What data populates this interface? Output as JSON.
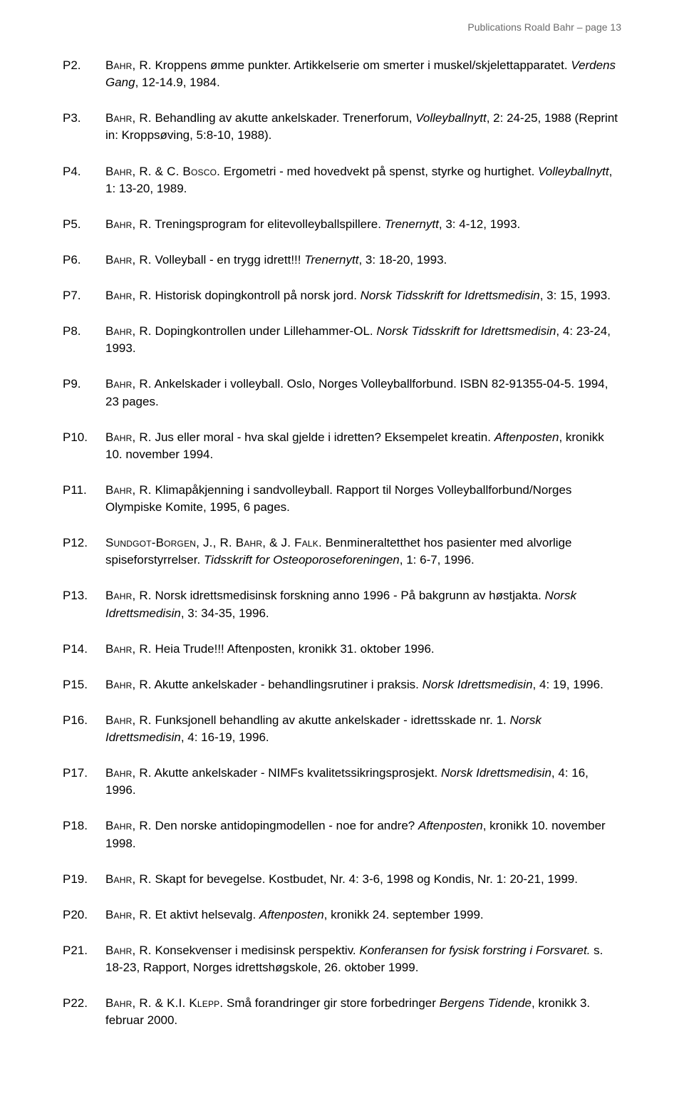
{
  "runhead": "Publications Roald Bahr – page 13",
  "entries": [
    {
      "ref": "P2.",
      "segments": [
        {
          "t": "Bahr, R.",
          "sc": true
        },
        {
          "t": " Kroppens ømme punkter. Artikkelserie om smerter i muskel/skjelettapparatet. "
        },
        {
          "t": "Verdens Gang",
          "it": true
        },
        {
          "t": ", 12-14.9, 1984."
        }
      ]
    },
    {
      "ref": "P3.",
      "segments": [
        {
          "t": "Bahr, R.",
          "sc": true
        },
        {
          "t": " Behandling av akutte ankelskader. Trenerforum, "
        },
        {
          "t": "Volleyballnytt",
          "it": true
        },
        {
          "t": ", 2: 24-25, 1988 (Reprint in: Kroppsøving, 5:8-10, 1988)."
        }
      ]
    },
    {
      "ref": "P4.",
      "segments": [
        {
          "t": "Bahr, R. & C. Bosco.",
          "sc": true
        },
        {
          "t": " Ergometri - med hovedvekt på spenst, styrke og hurtighet. "
        },
        {
          "t": "Volleyballnytt",
          "it": true
        },
        {
          "t": ", 1: 13-20, 1989."
        }
      ]
    },
    {
      "ref": "P5.",
      "segments": [
        {
          "t": "Bahr, R.",
          "sc": true
        },
        {
          "t": " Treningsprogram for elitevolleyballspillere. "
        },
        {
          "t": "Trenernytt",
          "it": true
        },
        {
          "t": ", 3: 4-12, 1993."
        }
      ]
    },
    {
      "ref": "P6.",
      "segments": [
        {
          "t": "Bahr, R.",
          "sc": true
        },
        {
          "t": " Volleyball - en trygg idrett!!! "
        },
        {
          "t": "Trenernytt",
          "it": true
        },
        {
          "t": ", 3: 18-20, 1993."
        }
      ]
    },
    {
      "ref": "P7.",
      "segments": [
        {
          "t": "Bahr, R.",
          "sc": true
        },
        {
          "t": " Historisk dopingkontroll på norsk jord. "
        },
        {
          "t": "Norsk Tidsskrift for Idrettsmedisin",
          "it": true
        },
        {
          "t": ", 3: 15, 1993."
        }
      ]
    },
    {
      "ref": "P8.",
      "segments": [
        {
          "t": "Bahr, R.",
          "sc": true
        },
        {
          "t": " Dopingkontrollen under Lillehammer-OL. "
        },
        {
          "t": "Norsk Tidsskrift for Idrettsmedisin",
          "it": true
        },
        {
          "t": ", 4: 23-24, 1993."
        }
      ]
    },
    {
      "ref": "P9.",
      "segments": [
        {
          "t": "Bahr, R.",
          "sc": true
        },
        {
          "t": " Ankelskader i volleyball. Oslo, Norges Volleyballforbund. ISBN 82-91355-04-5. 1994, 23 pages."
        }
      ]
    },
    {
      "ref": "P10.",
      "segments": [
        {
          "t": "Bahr, R.",
          "sc": true
        },
        {
          "t": " Jus eller moral - hva skal gjelde i idretten? Eksempelet kreatin. "
        },
        {
          "t": "Aftenposten",
          "it": true
        },
        {
          "t": ", kronikk 10. november 1994."
        }
      ]
    },
    {
      "ref": "P11.",
      "segments": [
        {
          "t": "Bahr, R.",
          "sc": true
        },
        {
          "t": " Klimapåkjenning i sandvolleyball. Rapport til Norges Volleyballforbund/Norges Olympiske Komite, 1995, 6 pages."
        }
      ]
    },
    {
      "ref": "P12.",
      "segments": [
        {
          "t": "Sundgot-Borgen, J., R. Bahr, & J. Falk.",
          "sc": true
        },
        {
          "t": " Benmineraltetthet hos pasienter med alvorlige spiseforstyrrelser. "
        },
        {
          "t": "Tidsskrift for Osteoporoseforeningen",
          "it": true
        },
        {
          "t": ", 1: 6-7, 1996."
        }
      ]
    },
    {
      "ref": "P13.",
      "segments": [
        {
          "t": "Bahr, R.",
          "sc": true
        },
        {
          "t": " Norsk idrettsmedisinsk forskning anno 1996 - På bakgrunn av høstjakta. "
        },
        {
          "t": "Norsk Idrettsmedisin",
          "it": true
        },
        {
          "t": ", 3: 34-35, 1996."
        }
      ]
    },
    {
      "ref": "P14.",
      "segments": [
        {
          "t": "Bahr, R.",
          "sc": true
        },
        {
          "t": " Heia Trude!!! Aftenposten, kronikk 31. oktober 1996."
        }
      ]
    },
    {
      "ref": "P15.",
      "segments": [
        {
          "t": "Bahr, R.",
          "sc": true
        },
        {
          "t": " Akutte ankelskader - behandlingsrutiner i praksis. "
        },
        {
          "t": "Norsk Idrettsmedisin",
          "it": true
        },
        {
          "t": ", 4: 19, 1996."
        }
      ]
    },
    {
      "ref": "P16.",
      "segments": [
        {
          "t": "Bahr, R.",
          "sc": true
        },
        {
          "t": " Funksjonell behandling av akutte ankelskader - idrettsskade nr. 1. "
        },
        {
          "t": "Norsk Idrettsmedisin",
          "it": true
        },
        {
          "t": ", 4: 16-19, 1996."
        }
      ]
    },
    {
      "ref": "P17.",
      "segments": [
        {
          "t": "Bahr, R.",
          "sc": true
        },
        {
          "t": " Akutte ankelskader - NIMFs kvalitetssikringsprosjekt. "
        },
        {
          "t": "Norsk Idrettsmedisin",
          "it": true
        },
        {
          "t": ", 4: 16, 1996."
        }
      ]
    },
    {
      "ref": "P18.",
      "segments": [
        {
          "t": "Bahr, R.",
          "sc": true
        },
        {
          "t": " Den norske antidopingmodellen - noe for andre? "
        },
        {
          "t": "Aftenposten",
          "it": true
        },
        {
          "t": ", kronikk 10. november 1998."
        }
      ]
    },
    {
      "ref": "P19.",
      "segments": [
        {
          "t": "Bahr, R.",
          "sc": true
        },
        {
          "t": " Skapt for bevegelse. Kostbudet, Nr. 4: 3-6, 1998 og Kondis, Nr. 1: 20-21, 1999."
        }
      ]
    },
    {
      "ref": "P20.",
      "segments": [
        {
          "t": "Bahr, R.",
          "sc": true
        },
        {
          "t": " Et aktivt helsevalg. "
        },
        {
          "t": "Aftenposten",
          "it": true
        },
        {
          "t": ", kronikk 24. september 1999."
        }
      ]
    },
    {
      "ref": "P21.",
      "segments": [
        {
          "t": "Bahr, R.",
          "sc": true
        },
        {
          "t": " Konsekvenser i medisinsk perspektiv. "
        },
        {
          "t": "Konferansen for fysisk forstring i Forsvaret.",
          "it": true
        },
        {
          "t": " s. 18-23, Rapport, Norges idrettshøgskole, 26. oktober 1999."
        }
      ]
    },
    {
      "ref": "P22.",
      "segments": [
        {
          "t": "Bahr, R. & K.I. Klepp.",
          "sc": true
        },
        {
          "t": " Små forandringer gir store forbedringer "
        },
        {
          "t": "Bergens Tidende",
          "it": true
        },
        {
          "t": ", kronikk 3. februar 2000."
        }
      ]
    }
  ]
}
